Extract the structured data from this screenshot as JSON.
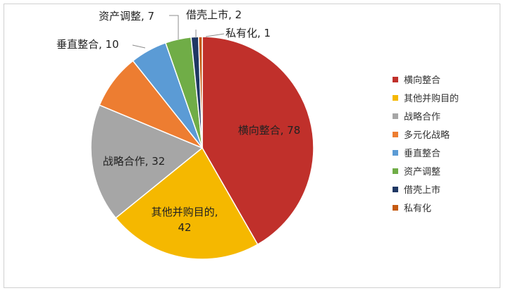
{
  "chart_data": {
    "type": "pie",
    "title": "",
    "legend_position": "right",
    "slices": [
      {
        "name": "横向整合",
        "value": 78,
        "label": "横向整合, 78",
        "color": "#c0302b"
      },
      {
        "name": "其他并购目的",
        "value": 42,
        "label_lines": [
          "其他并购目的,",
          "42"
        ],
        "color": "#f5b800"
      },
      {
        "name": "战略合作",
        "value": 32,
        "label": "战略合作, 32",
        "color": "#a6a6a6"
      },
      {
        "name": "多元化战略",
        "value": 15,
        "label": "",
        "color": "#ed7d31"
      },
      {
        "name": "垂直整合",
        "value": 10,
        "label": "垂直整合, 10",
        "color": "#5b9bd5"
      },
      {
        "name": "资产调整",
        "value": 7,
        "label": "资产调整, 7",
        "color": "#70ad47"
      },
      {
        "name": "借壳上市",
        "value": 2,
        "label": "借壳上市, 2",
        "color": "#1f3864"
      },
      {
        "name": "私有化",
        "value": 1,
        "label": "私有化, 1",
        "color": "#c55a11"
      }
    ]
  }
}
